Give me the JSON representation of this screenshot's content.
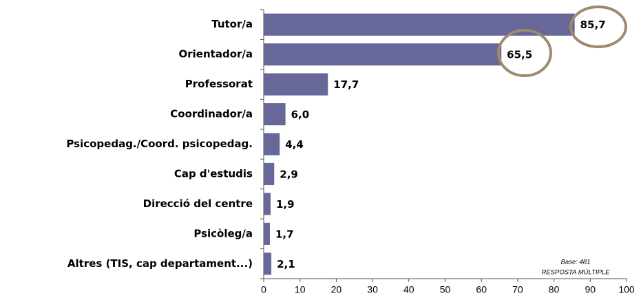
{
  "chart_data": {
    "type": "barh",
    "categories": [
      "Tutor/a",
      "Orientador/a",
      "Professorat",
      "Coordinador/a",
      "Psicopedag./Coord. psicopedag.",
      "Cap d'estudis",
      "Direcció del centre",
      "Psicòleg/a",
      "Altres (TIS, cap departament...)"
    ],
    "values": [
      85.7,
      65.5,
      17.7,
      6.0,
      4.4,
      2.9,
      1.9,
      1.7,
      2.1
    ],
    "value_labels": [
      "85,7",
      "65,5",
      "17,7",
      "6,0",
      "4,4",
      "2,9",
      "1,9",
      "1,7",
      "2,1"
    ],
    "color": "#676799",
    "xlim": [
      0,
      100
    ],
    "xticks": [
      0,
      10,
      20,
      30,
      40,
      50,
      60,
      70,
      80,
      90,
      100
    ],
    "annotations": [
      "Base: 481",
      "RESPOSTA MÚLTIPLE"
    ]
  }
}
